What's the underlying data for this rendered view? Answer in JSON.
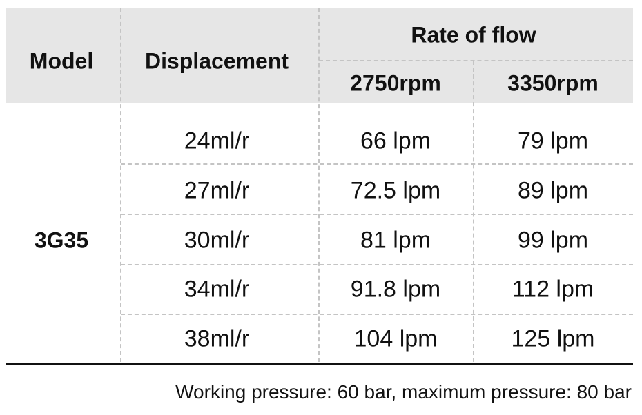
{
  "table": {
    "header": {
      "model": "Model",
      "displacement": "Displacement",
      "rate_of_flow": "Rate of flow",
      "rpm": [
        "2750rpm",
        "3350rpm"
      ]
    },
    "model": "3G35",
    "rows": [
      [
        "24ml/r",
        "66 lpm",
        "79 lpm"
      ],
      [
        "27ml/r",
        "72.5 lpm",
        "89 lpm"
      ],
      [
        "30ml/r",
        "81 lpm",
        "99 lpm"
      ],
      [
        "34ml/r",
        "91.8 lpm",
        "112 lpm"
      ],
      [
        "38ml/r",
        "104 lpm",
        "125 lpm"
      ]
    ]
  },
  "footnote": "Working pressure: 60 bar, maximum pressure: 80 bar"
}
